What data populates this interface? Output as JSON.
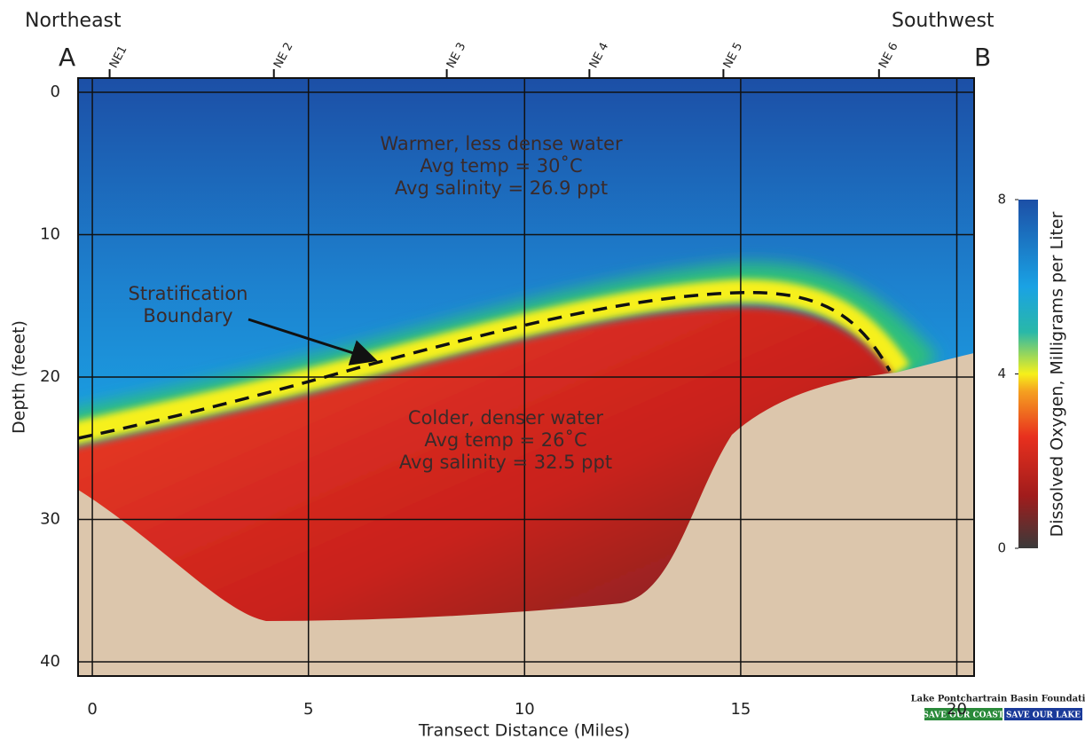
{
  "chart_data": {
    "type": "section",
    "left_label": "Northeast",
    "right_label": "Southwest",
    "left_end": "A",
    "right_end": "B",
    "xlabel": "Transect Distance (Miles)",
    "ylabel": "Depth (feeet)",
    "xlim": [
      -0.33,
      20.4
    ],
    "ylim": [
      -1,
      41
    ],
    "xticks": [
      0,
      5,
      10,
      15,
      20
    ],
    "yticks": [
      0,
      10,
      20,
      30,
      40
    ],
    "grid": true,
    "stations": [
      {
        "label": "NE1",
        "x": 0.4
      },
      {
        "label": "NE 2",
        "x": 4.2
      },
      {
        "label": "NE 3",
        "x": 8.2
      },
      {
        "label": "NE 4",
        "x": 11.5
      },
      {
        "label": "NE 5",
        "x": 14.6
      },
      {
        "label": "NE 6",
        "x": 18.2
      }
    ],
    "annotations": {
      "upper": [
        "Warmer, less dense water",
        "Avg temp = 30˚C",
        "Avg salinity = 26.9 ppt"
      ],
      "lower": [
        "Colder, denser water",
        "Avg temp = 26˚C",
        "Avg salinity = 32.5 ppt"
      ],
      "boundary": [
        "Stratification",
        "Boundary"
      ]
    },
    "colorbar": {
      "label": "Dissolved Oxygen, Milligrams per Liter",
      "lim": [
        0,
        8
      ],
      "ticks": [
        0,
        4,
        8
      ]
    },
    "logo": {
      "title": "Lake Pontchartrain Basin Foundation",
      "badges": [
        "SAVE OUR COAST",
        "SAVE OUR LAKE"
      ]
    }
  }
}
